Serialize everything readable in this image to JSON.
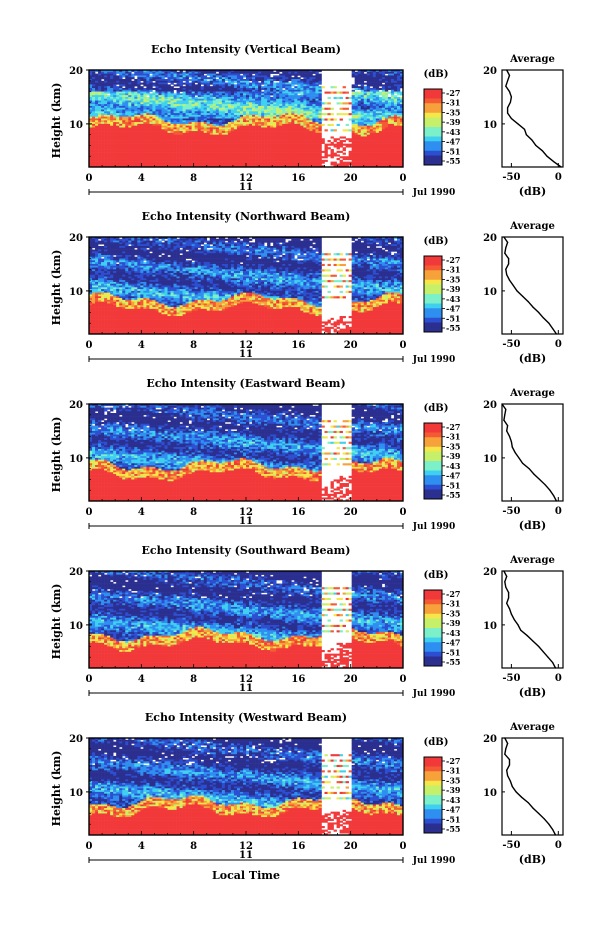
{
  "figure": {
    "xlabel_bottom": "Local Time",
    "date_label": "Jul 1990",
    "day_label": "11",
    "ylabel": "Height (km)",
    "colorbar_unit": "(dB)",
    "colorbar_ticks": [
      "-27",
      "-31",
      "-35",
      "-39",
      "-43",
      "-47",
      "-51",
      "-55"
    ],
    "avg_title": "Average",
    "avg_xlabel": "(dB)"
  },
  "colors": {
    "colormap": [
      "#2b2f8f",
      "#2c4ed0",
      "#2f8ff0",
      "#3fd0f0",
      "#7cf0c8",
      "#c6f06a",
      "#f5e74a",
      "#f7a13a",
      "#f45a33",
      "#f2393a"
    ]
  },
  "chart_data": [
    {
      "type": "heatmap",
      "title": "Echo Intensity (Vertical Beam)",
      "xlabel": "Local Time",
      "ylabel": "Height (km)",
      "xlim": [
        0,
        24
      ],
      "xticks": [
        "0",
        "4",
        "8",
        "12",
        "16",
        "20",
        "0"
      ],
      "ylim": [
        2,
        20
      ],
      "yticks": [
        "10",
        "20"
      ],
      "colorbar": {
        "unit": "(dB)",
        "range": [
          -57,
          -25
        ],
        "ticks": [
          "-27",
          "-31",
          "-35",
          "-39",
          "-43",
          "-47",
          "-51",
          "-55"
        ]
      },
      "approx_boundary_height_km": 9.6,
      "data_gap_local_time": [
        17.8,
        20.1
      ],
      "average_profile": {
        "title": "Average",
        "xlabel": "(dB)",
        "xticks": [
          "-50",
          "0"
        ],
        "yticks": [
          "10",
          "20"
        ],
        "height_km": [
          20,
          19,
          18,
          17,
          16,
          15,
          14,
          13,
          12,
          11,
          10,
          9,
          8,
          7,
          6,
          5,
          4,
          3,
          2
        ],
        "value_db": [
          -55,
          -52,
          -54,
          -56,
          -52,
          -50,
          -51,
          -54,
          -54,
          -50,
          -43,
          -36,
          -34,
          -28,
          -24,
          -17,
          -12,
          -5,
          3
        ]
      }
    },
    {
      "type": "heatmap",
      "title": "Echo Intensity (Northward Beam)",
      "xlabel": "Local Time",
      "ylabel": "Height (km)",
      "xlim": [
        0,
        24
      ],
      "xticks": [
        "0",
        "4",
        "8",
        "12",
        "16",
        "20",
        "0"
      ],
      "ylim": [
        2,
        20
      ],
      "yticks": [
        "10",
        "20"
      ],
      "colorbar": {
        "unit": "(dB)",
        "range": [
          -57,
          -25
        ],
        "ticks": [
          "-27",
          "-31",
          "-35",
          "-39",
          "-43",
          "-47",
          "-51",
          "-55"
        ]
      },
      "approx_boundary_height_km": 7.2,
      "data_gap_local_time": [
        17.8,
        20.1
      ],
      "average_profile": {
        "title": "Average",
        "xlabel": "(dB)",
        "xticks": [
          "-50",
          "0"
        ],
        "yticks": [
          "10",
          "20"
        ],
        "height_km": [
          20,
          19,
          18,
          17,
          16,
          15,
          14,
          13,
          12,
          11,
          10,
          9,
          8,
          7,
          6,
          5,
          4,
          3,
          2
        ],
        "value_db": [
          -58,
          -54,
          -56,
          -57,
          -53,
          -53,
          -56,
          -55,
          -52,
          -48,
          -44,
          -38,
          -32,
          -27,
          -21,
          -16,
          -10,
          -6,
          -2
        ]
      }
    },
    {
      "type": "heatmap",
      "title": "Echo Intensity (Eastward Beam)",
      "xlabel": "Local Time",
      "ylabel": "Height (km)",
      "xlim": [
        0,
        24
      ],
      "xticks": [
        "0",
        "4",
        "8",
        "12",
        "16",
        "20",
        "0"
      ],
      "ylim": [
        2,
        20
      ],
      "yticks": [
        "10",
        "20"
      ],
      "colorbar": {
        "unit": "(dB)",
        "range": [
          -57,
          -25
        ],
        "ticks": [
          "-27",
          "-31",
          "-35",
          "-39",
          "-43",
          "-47",
          "-51",
          "-55"
        ]
      },
      "approx_boundary_height_km": 7.5,
      "data_gap_local_time": [
        17.8,
        20.1
      ],
      "average_profile": {
        "title": "Average",
        "xlabel": "(dB)",
        "xticks": [
          "-50",
          "0"
        ],
        "yticks": [
          "10",
          "20"
        ],
        "height_km": [
          20,
          19,
          18,
          17,
          16,
          15,
          14,
          13,
          12,
          11,
          10,
          9,
          8,
          7,
          6,
          5,
          4,
          3,
          2
        ],
        "value_db": [
          -60,
          -56,
          -57,
          -58,
          -54,
          -55,
          -52,
          -50,
          -49,
          -46,
          -42,
          -38,
          -31,
          -26,
          -20,
          -14,
          -9,
          -5,
          -2
        ]
      }
    },
    {
      "type": "heatmap",
      "title": "Echo Intensity (Southward Beam)",
      "xlabel": "Local Time",
      "ylabel": "Height (km)",
      "xlim": [
        0,
        24
      ],
      "xticks": [
        "0",
        "4",
        "8",
        "12",
        "16",
        "20",
        "0"
      ],
      "ylim": [
        2,
        20
      ],
      "yticks": [
        "10",
        "20"
      ],
      "colorbar": {
        "unit": "(dB)",
        "range": [
          -57,
          -25
        ],
        "ticks": [
          "-27",
          "-31",
          "-35",
          "-39",
          "-43",
          "-47",
          "-51",
          "-55"
        ]
      },
      "approx_boundary_height_km": 7.0,
      "data_gap_local_time": [
        17.8,
        20.1
      ],
      "average_profile": {
        "title": "Average",
        "xlabel": "(dB)",
        "xticks": [
          "-50",
          "0"
        ],
        "yticks": [
          "10",
          "20"
        ],
        "height_km": [
          20,
          19,
          18,
          17,
          16,
          15,
          14,
          13,
          12,
          11,
          10,
          9,
          8,
          7,
          6,
          5,
          4,
          3,
          2
        ],
        "value_db": [
          -58,
          -55,
          -57,
          -56,
          -53,
          -53,
          -55,
          -52,
          -50,
          -47,
          -43,
          -40,
          -33,
          -27,
          -21,
          -16,
          -11,
          -6,
          -3
        ]
      }
    },
    {
      "type": "heatmap",
      "title": "Echo Intensity (Westward Beam)",
      "xlabel": "Local Time",
      "ylabel": "Height (km)",
      "xlim": [
        0,
        24
      ],
      "xticks": [
        "0",
        "4",
        "8",
        "12",
        "16",
        "20",
        "0"
      ],
      "ylim": [
        2,
        20
      ],
      "yticks": [
        "10",
        "20"
      ],
      "colorbar": {
        "unit": "(dB)",
        "range": [
          -57,
          -25
        ],
        "ticks": [
          "-27",
          "-31",
          "-35",
          "-39",
          "-43",
          "-47",
          "-51",
          "-55"
        ]
      },
      "approx_boundary_height_km": 7.0,
      "data_gap_local_time": [
        17.8,
        20.1
      ],
      "average_profile": {
        "title": "Average",
        "xlabel": "(dB)",
        "xticks": [
          "-50",
          "0"
        ],
        "yticks": [
          "10",
          "20"
        ],
        "height_km": [
          20,
          19,
          18,
          17,
          16,
          15,
          14,
          13,
          12,
          11,
          10,
          9,
          8,
          7,
          6,
          5,
          4,
          3,
          2
        ],
        "value_db": [
          -57,
          -54,
          -56,
          -57,
          -52,
          -52,
          -55,
          -54,
          -51,
          -49,
          -45,
          -39,
          -32,
          -27,
          -21,
          -15,
          -10,
          -6,
          -3
        ]
      }
    }
  ]
}
